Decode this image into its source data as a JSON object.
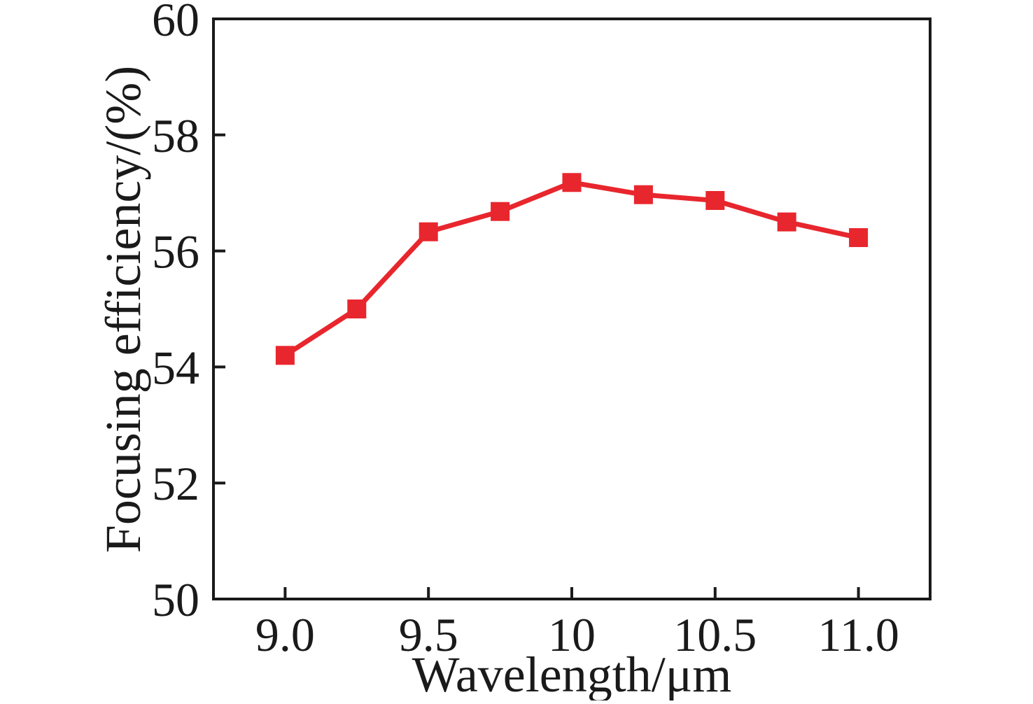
{
  "chart_data": {
    "type": "line",
    "x": [
      9.0,
      9.25,
      9.5,
      9.75,
      10.0,
      10.25,
      10.5,
      10.75,
      11.0
    ],
    "y": [
      54.2,
      55.0,
      56.33,
      56.68,
      57.18,
      56.97,
      56.87,
      56.5,
      56.23
    ],
    "series": [
      {
        "name": "focusing-efficiency",
        "x": [
          9.0,
          9.25,
          9.5,
          9.75,
          10.0,
          10.25,
          10.5,
          10.75,
          11.0
        ],
        "y": [
          54.2,
          55.0,
          56.33,
          56.68,
          57.18,
          56.97,
          56.87,
          56.5,
          56.23
        ]
      }
    ],
    "title": "",
    "xlabel": "Wavelength/μm",
    "ylabel": "Focusing efficiency/(%)",
    "xlim": [
      8.75,
      11.25
    ],
    "ylim": [
      50,
      60
    ],
    "x_tick_values": [
      9.0,
      9.5,
      10.0,
      10.5,
      11.0
    ],
    "x_tick_labels": [
      "9.0",
      "9.5",
      "10",
      "10.5",
      "11.0"
    ],
    "y_tick_values": [
      50,
      52,
      54,
      56,
      58,
      60
    ],
    "y_tick_labels": [
      "50",
      "52",
      "54",
      "56",
      "58",
      "60"
    ],
    "grid": false,
    "legend_position": "none",
    "marker_shape": "square",
    "line_color": "#e8262d",
    "marker_color": "#e8262d",
    "axis_color": "#1a1a1a",
    "background_color": "#ffffff",
    "ticks_direction": "in"
  }
}
